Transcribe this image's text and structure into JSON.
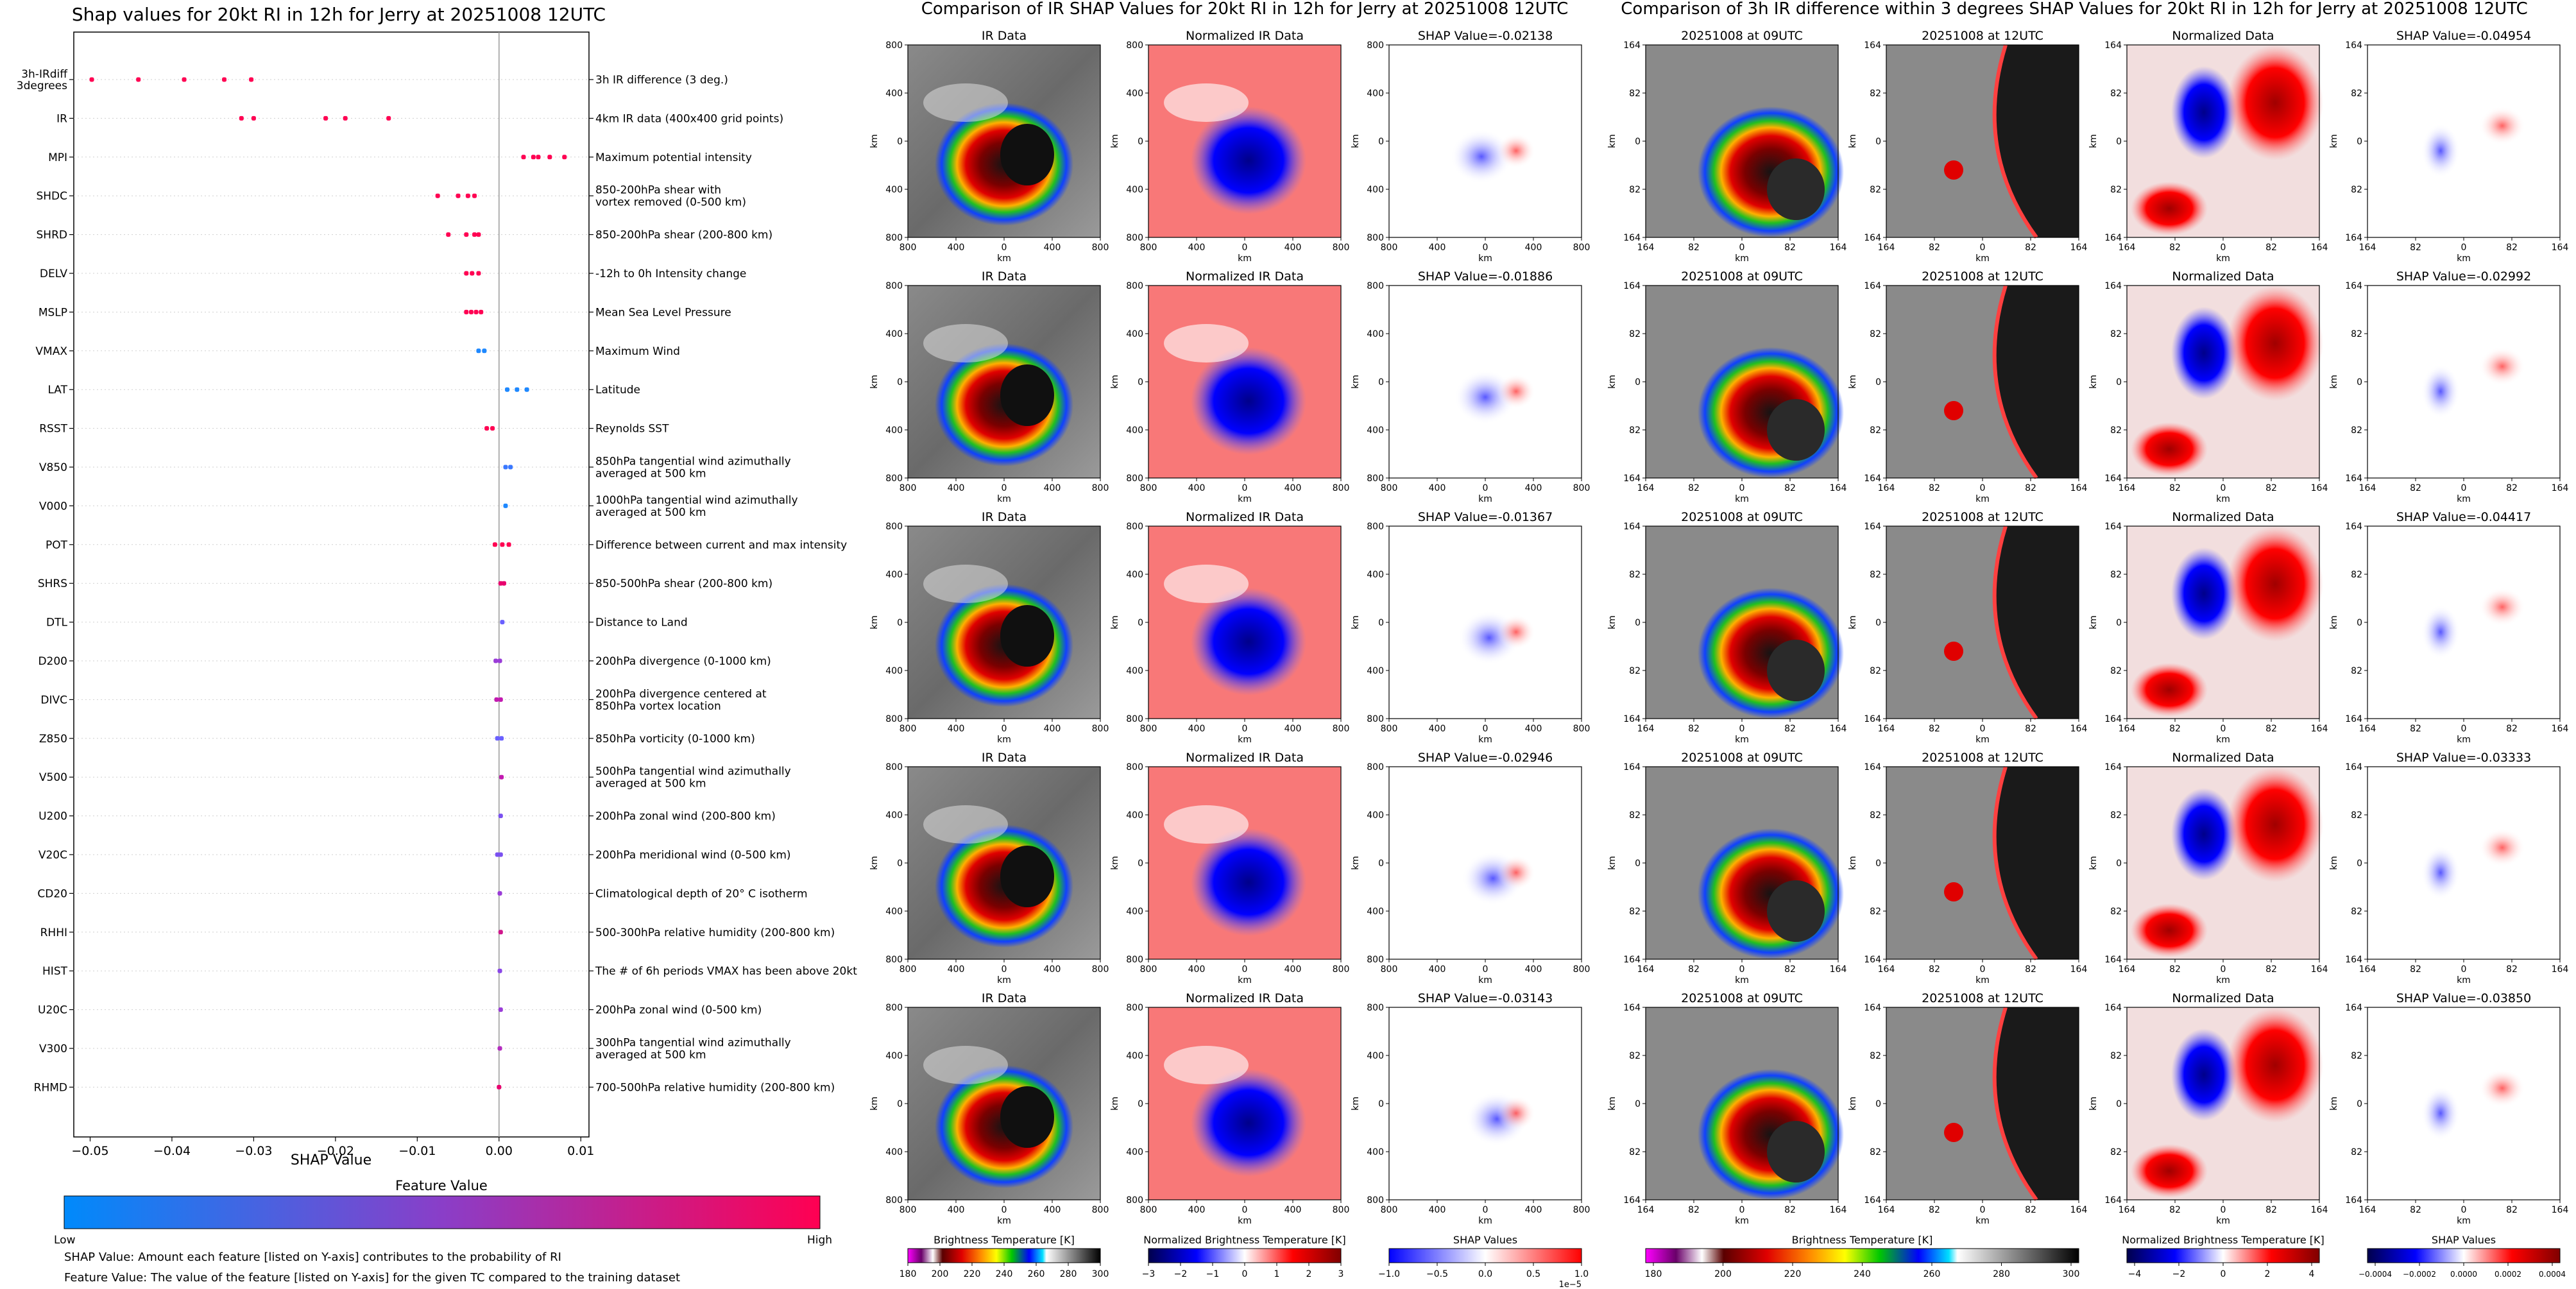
{
  "chart_data": [
    {
      "type": "scatter",
      "title": "Shap values for 20kt RI in 12h for Jerry at 20251008 12UTC",
      "xlabel": "SHAP Value",
      "xlim": [
        -0.052,
        0.011
      ],
      "xticks": [
        -0.05,
        -0.04,
        -0.03,
        -0.02,
        -0.01,
        0.0,
        0.01
      ],
      "xtick_labels": [
        "−0.05",
        "−0.04",
        "−0.03",
        "−0.02",
        "−0.01",
        "0.00",
        "0.01"
      ],
      "grid": false,
      "features": [
        {
          "code": "3h-IRdiff\n3degrees",
          "desc": "3h IR difference (3 deg.)",
          "values": [
            -0.0498,
            -0.0441,
            -0.0385,
            -0.0336,
            -0.0303
          ],
          "color": "#ff0052"
        },
        {
          "code": "IR",
          "desc": "4km IR data (400x400 grid points)",
          "values": [
            -0.0315,
            -0.03,
            -0.0212,
            -0.0188,
            -0.0135
          ],
          "color": "#ff0052"
        },
        {
          "code": "MPI",
          "desc": "Maximum potential intensity",
          "values": [
            0.003,
            0.0042,
            0.0048,
            0.0062,
            0.008
          ],
          "color": "#ff0052"
        },
        {
          "code": "SHDC",
          "desc": "850-200hPa shear with\nvortex removed (0-500 km)",
          "values": [
            -0.0075,
            -0.005,
            -0.0038,
            -0.003
          ],
          "color": "#ff0052"
        },
        {
          "code": "SHRD",
          "desc": "850-200hPa shear (200-800 km)",
          "values": [
            -0.0062,
            -0.004,
            -0.003,
            -0.0025
          ],
          "color": "#ff0052"
        },
        {
          "code": "DELV",
          "desc": "-12h to 0h Intensity change",
          "values": [
            -0.004,
            -0.0033,
            -0.0025
          ],
          "color": "#ff0052"
        },
        {
          "code": "MSLP",
          "desc": "Mean Sea Level Pressure",
          "values": [
            -0.004,
            -0.0034,
            -0.0028,
            -0.0022
          ],
          "color": "#ff0052"
        },
        {
          "code": "VMAX",
          "desc": "Maximum Wind",
          "values": [
            -0.0025,
            -0.0018
          ],
          "color": "#1e88ff"
        },
        {
          "code": "LAT",
          "desc": "Latitude",
          "values": [
            0.001,
            0.0022,
            0.0034
          ],
          "color": "#1e88ff"
        },
        {
          "code": "RSST",
          "desc": "Reynolds SST",
          "values": [
            -0.0015,
            -0.0008
          ],
          "color": "#ff0052"
        },
        {
          "code": "V850",
          "desc": "850hPa tangential wind azimuthally\naveraged at 500 km",
          "values": [
            0.0008,
            0.0014
          ],
          "color": "#3a78ff"
        },
        {
          "code": "V000",
          "desc": "1000hPa tangential wind azimuthally\naveraged at 500 km",
          "values": [
            0.0008
          ],
          "color": "#1e88ff"
        },
        {
          "code": "POT",
          "desc": "Difference between current and max intensity",
          "values": [
            -0.0005,
            0.0004,
            0.0012
          ],
          "color": "#ff0052"
        },
        {
          "code": "SHRS",
          "desc": "850-500hPa shear (200-800 km)",
          "values": [
            0.0002,
            0.0006
          ],
          "color": "#e8006e"
        },
        {
          "code": "DTL",
          "desc": "Distance to Land",
          "values": [
            0.0004
          ],
          "color": "#6a60ff"
        },
        {
          "code": "D200",
          "desc": "200hPa divergence (0-1000 km)",
          "values": [
            -0.0004,
            0.0001
          ],
          "color": "#9a3cd8"
        },
        {
          "code": "DIVC",
          "desc": "200hPa divergence centered at\n850hPa vortex location",
          "values": [
            -0.0003,
            0.0002
          ],
          "color": "#c21ab0"
        },
        {
          "code": "Z850",
          "desc": "850hPa vorticity (0-1000 km)",
          "values": [
            -0.0002,
            0.0003
          ],
          "color": "#6a60ff"
        },
        {
          "code": "V500",
          "desc": "500hPa tangential wind azimuthally\naveraged at 500 km",
          "values": [
            0.0003
          ],
          "color": "#c21ab0"
        },
        {
          "code": "U200",
          "desc": "200hPa zonal wind (200-800 km)",
          "values": [
            0.0002
          ],
          "color": "#7a50f0"
        },
        {
          "code": "V20C",
          "desc": "200hPa meridional wind (0-500 km)",
          "values": [
            -0.0002,
            0.0002
          ],
          "color": "#7a50f0"
        },
        {
          "code": "CD20",
          "desc": "Climatological depth of 20° C isotherm",
          "values": [
            0.0001
          ],
          "color": "#9a3cd8"
        },
        {
          "code": "RHHI",
          "desc": "500-300hPa relative humidity (200-800 km)",
          "values": [
            0.0002
          ],
          "color": "#d0168c"
        },
        {
          "code": "HIST",
          "desc": "The # of 6h periods VMAX has been above 20kt",
          "values": [
            0.0001
          ],
          "color": "#8a46e8"
        },
        {
          "code": "U20C",
          "desc": "200hPa zonal wind (0-500 km)",
          "values": [
            0.0002
          ],
          "color": "#9a3cd8"
        },
        {
          "code": "V300",
          "desc": "300hPa tangential wind azimuthally\naveraged at 500 km",
          "values": [
            0.0001
          ],
          "color": "#b42cc0"
        },
        {
          "code": "RHMD",
          "desc": "700-500hPa relative humidity (200-800 km)",
          "values": [
            0.0
          ],
          "color": "#e8006e"
        }
      ],
      "colorbar": {
        "title": "Feature Value",
        "low_label": "Low",
        "high_label": "High",
        "low_color": "#008afb",
        "mid_color": "#8a3ec8",
        "high_color": "#ff0052"
      },
      "notes": [
        "SHAP Value: Amount each feature [listed on Y-axis] contributes to the probability of RI",
        "Feature Value: The value of the feature [listed on Y-axis] for the given TC compared to the training dataset"
      ]
    },
    {
      "type": "heatmap",
      "title": "Comparison of IR SHAP Values for 20kt RI in 12h for Jerry at 20251008 12UTC",
      "column_titles": [
        "IR Data",
        "Normalized IR Data"
      ],
      "shap_titles": [
        "SHAP Value=-0.02138",
        "SHAP Value=-0.01886",
        "SHAP Value=-0.01367",
        "SHAP Value=-0.02946",
        "SHAP Value=-0.03143"
      ],
      "xlabel": "km",
      "ylabel": "km",
      "ticks": [
        "800",
        "400",
        "0",
        "400",
        "800"
      ],
      "colorbars": [
        {
          "title": "Brightness Temperature [K]",
          "ticks": [
            "180",
            "200",
            "220",
            "240",
            "260",
            "280",
            "300"
          ]
        },
        {
          "title": "Normalized Brightness Temperature [K]",
          "ticks": [
            "−3",
            "−2",
            "−1",
            "0",
            "1",
            "2",
            "3"
          ]
        },
        {
          "title": "SHAP Values",
          "ticks": [
            "−1.0",
            "−0.5",
            "0.0",
            "0.5",
            "1.0"
          ],
          "exponent": "1e−5"
        }
      ]
    },
    {
      "type": "heatmap",
      "title": "Comparison of 3h IR difference within 3 degrees SHAP Values for 20kt RI in 12h for Jerry at 20251008 12UTC",
      "column_titles": [
        "20251008 at 09UTC",
        "20251008 at 12UTC",
        "Normalized Data"
      ],
      "shap_titles": [
        "SHAP Value=-0.04954",
        "SHAP Value=-0.02992",
        "SHAP Value=-0.04417",
        "SHAP Value=-0.03333",
        "SHAP Value=-0.03850"
      ],
      "xlabel": "km",
      "ylabel": "km",
      "ticks": [
        "164",
        "82",
        "0",
        "82",
        "164"
      ],
      "colorbars": [
        {
          "title": "Brightness Temperature [K]",
          "ticks": [
            "180",
            "200",
            "220",
            "240",
            "260",
            "280",
            "300"
          ]
        },
        {
          "title": "Normalized Brightness Temperature [K]",
          "ticks": [
            "−4",
            "−2",
            "0",
            "2",
            "4"
          ]
        },
        {
          "title": "SHAP Values",
          "ticks": [
            "−0.0004",
            "−0.0002",
            "0.0000",
            "0.0002",
            "0.0004"
          ]
        }
      ]
    }
  ]
}
